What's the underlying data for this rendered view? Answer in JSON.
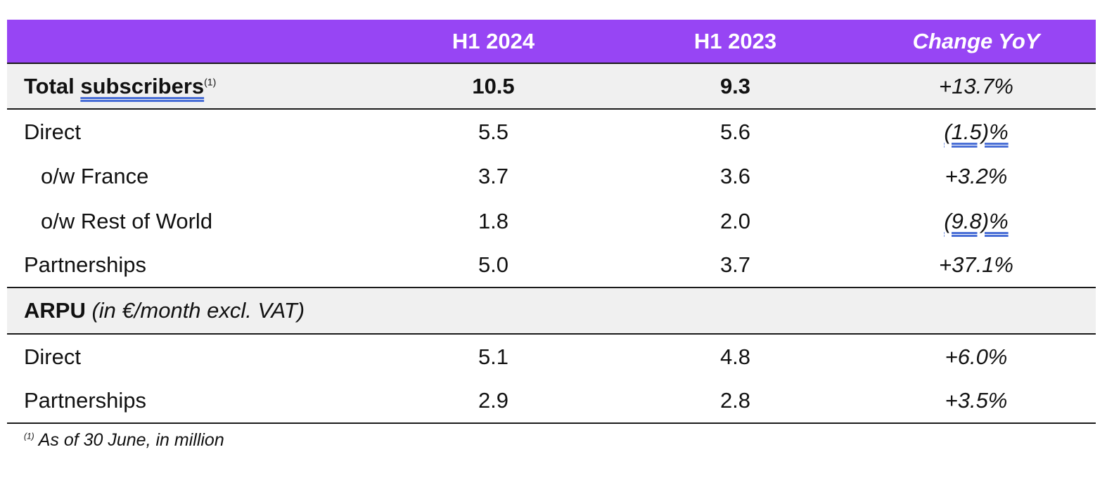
{
  "header": {
    "col1": "H1 2024",
    "col2": "H1 2023",
    "col3": "Change YoY"
  },
  "total": {
    "label_part1": "Total ",
    "label_part2": "subscribers",
    "footnote_marker": "(1)",
    "h1_2024": "10.5",
    "h1_2023": "9.3",
    "change": "+13.7%"
  },
  "rows": [
    {
      "label": "Direct",
      "h1_2024": "5.5",
      "h1_2023": "5.6",
      "change": "(1.5)%"
    },
    {
      "label": "o/w France",
      "h1_2024": "3.7",
      "h1_2023": "3.6",
      "change": "+3.2%"
    },
    {
      "label": "o/w Rest of World",
      "h1_2024": "1.8",
      "h1_2023": "2.0",
      "change": "(9.8)%"
    },
    {
      "label": "Partnerships",
      "h1_2024": "5.0",
      "h1_2023": "3.7",
      "change": "+37.1%"
    }
  ],
  "arpu": {
    "label": "ARPU",
    "note": "(in €/month excl. VAT)",
    "rows": [
      {
        "label": "Direct",
        "h1_2024": "5.1",
        "h1_2023": "4.8",
        "change": "+6.0%"
      },
      {
        "label": "Partnerships",
        "h1_2024": "2.9",
        "h1_2023": "2.8",
        "change": "+3.5%"
      }
    ]
  },
  "footnote": {
    "marker": "(1)",
    "text": "As of 30 June, in million"
  },
  "colors": {
    "header_bg": "#9745f4",
    "section_bg": "#f0f0f0"
  }
}
